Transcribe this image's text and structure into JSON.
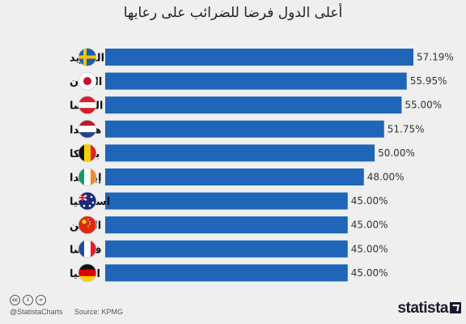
{
  "chart_data": {
    "type": "bar",
    "orientation": "horizontal",
    "title": "أعلى الدول فرضا للضرائب على رعايها",
    "categories": [
      "السويد",
      "اليابان",
      "النمسا",
      "هولندا",
      "بلجيكا",
      "إيرلندا",
      "استراليا",
      "الصين",
      "فرنسا",
      "المانيا"
    ],
    "values": [
      57.19,
      55.95,
      55.0,
      51.75,
      50.0,
      48.0,
      45.0,
      45.0,
      45.0,
      45.0
    ],
    "value_labels": [
      "57.19%",
      "55.95%",
      "55.00%",
      "51.75%",
      "50.00%",
      "48.00%",
      "45.00%",
      "45.00%",
      "45.00%",
      "45.00%"
    ],
    "flags": [
      "sweden-flag-icon",
      "japan-flag-icon",
      "austria-flag-icon",
      "netherlands-flag-icon",
      "belgium-flag-icon",
      "ireland-flag-icon",
      "australia-flag-icon",
      "china-flag-icon",
      "france-flag-icon",
      "germany-flag-icon"
    ],
    "bar_color": "#1f66b8",
    "xlim": [
      0,
      57.19
    ],
    "grid": false,
    "legend": "none"
  },
  "footer": {
    "cc_icons": [
      "cc",
      "i",
      "="
    ],
    "handle": "@StatistaCharts",
    "source": "Source: KPMG",
    "brand": "statista"
  }
}
